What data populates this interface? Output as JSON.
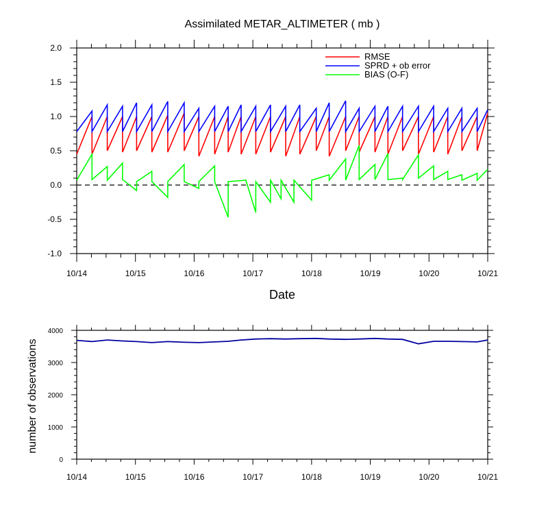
{
  "chart_data": [
    {
      "type": "line",
      "title": "Assimilated METAR_ALTIMETER ( mb )",
      "xlabel": "Date",
      "ylabel": "",
      "xlim": [
        "10/14",
        "10/21"
      ],
      "ylim": [
        -1.0,
        2.0
      ],
      "x_tick_labels": [
        "10/14",
        "10/15",
        "10/16",
        "10/17",
        "10/18",
        "10/19",
        "10/20",
        "10/21"
      ],
      "y_tick_labels": [
        "-1.0",
        "-0.5",
        "0.0",
        "0.5",
        "1.0",
        "1.5",
        "2.0"
      ],
      "y_ticks": [
        -1.0,
        -0.5,
        0.0,
        0.5,
        1.0,
        1.5,
        2.0
      ],
      "zero_line": "dashed",
      "grid": false,
      "legend_position": "top-right",
      "series": [
        {
          "name": "RMSE",
          "color": "#ff0000",
          "x_days": [
            0.0,
            0.26,
            0.26,
            0.52,
            0.52,
            0.78,
            0.78,
            1.02,
            1.02,
            1.28,
            1.28,
            1.55,
            1.55,
            1.83,
            1.83,
            2.08,
            2.08,
            2.35,
            2.35,
            2.58,
            2.58,
            2.8,
            2.8,
            3.05,
            3.05,
            3.3,
            3.3,
            3.56,
            3.56,
            3.8,
            3.8,
            4.08,
            4.08,
            4.3,
            4.3,
            4.58,
            4.58,
            4.81,
            4.81,
            5.08,
            5.08,
            5.3,
            5.3,
            5.55,
            5.55,
            5.82,
            5.82,
            6.08,
            6.08,
            6.32,
            6.32,
            6.56,
            6.56,
            6.82,
            6.82,
            7.0
          ],
          "values": [
            0.45,
            1.0,
            0.45,
            1.0,
            0.5,
            1.0,
            0.48,
            1.0,
            0.5,
            1.0,
            0.48,
            1.02,
            0.48,
            1.05,
            0.5,
            1.0,
            0.42,
            1.0,
            0.45,
            1.0,
            0.48,
            1.0,
            0.45,
            1.0,
            0.45,
            1.0,
            0.48,
            1.0,
            0.42,
            1.0,
            0.45,
            1.0,
            0.5,
            1.0,
            0.42,
            1.0,
            0.5,
            1.0,
            0.48,
            1.0,
            0.48,
            1.0,
            0.45,
            1.0,
            0.5,
            1.0,
            0.45,
            1.0,
            0.48,
            1.0,
            0.45,
            1.0,
            0.5,
            1.0,
            0.5,
            1.05
          ]
        },
        {
          "name": "SPRD + ob error",
          "color": "#0000ff",
          "x_days": [
            0.0,
            0.26,
            0.26,
            0.52,
            0.52,
            0.78,
            0.78,
            1.02,
            1.02,
            1.28,
            1.28,
            1.55,
            1.55,
            1.83,
            1.83,
            2.08,
            2.08,
            2.35,
            2.35,
            2.58,
            2.58,
            2.8,
            2.8,
            3.05,
            3.05,
            3.3,
            3.3,
            3.56,
            3.56,
            3.8,
            3.8,
            4.08,
            4.08,
            4.3,
            4.3,
            4.58,
            4.58,
            4.81,
            4.81,
            5.08,
            5.08,
            5.3,
            5.3,
            5.55,
            5.55,
            5.82,
            5.82,
            6.08,
            6.08,
            6.32,
            6.32,
            6.56,
            6.56,
            6.82,
            6.82,
            7.0
          ],
          "values": [
            0.78,
            1.08,
            0.78,
            1.17,
            0.78,
            1.15,
            0.78,
            1.2,
            0.78,
            1.17,
            0.78,
            1.22,
            0.78,
            1.2,
            0.78,
            1.12,
            0.78,
            1.15,
            0.78,
            1.15,
            0.78,
            1.17,
            0.78,
            1.15,
            0.78,
            1.17,
            0.78,
            1.15,
            0.78,
            1.17,
            0.78,
            1.12,
            0.78,
            1.2,
            0.78,
            1.23,
            0.78,
            1.12,
            0.78,
            1.15,
            0.78,
            1.15,
            0.78,
            1.15,
            0.78,
            1.15,
            0.78,
            1.15,
            0.78,
            1.12,
            0.78,
            1.12,
            0.78,
            1.12,
            0.78,
            1.1
          ]
        },
        {
          "name": "BIAS (O-F)",
          "color": "#00ff00",
          "x_days": [
            0.0,
            0.26,
            0.26,
            0.52,
            0.52,
            0.78,
            0.78,
            1.02,
            1.02,
            1.28,
            1.28,
            1.55,
            1.55,
            1.83,
            1.83,
            2.08,
            2.08,
            2.35,
            2.35,
            2.58,
            2.58,
            2.88,
            2.88,
            3.05,
            3.05,
            3.3,
            3.3,
            3.48,
            3.48,
            3.7,
            3.7,
            4.0,
            4.0,
            4.3,
            4.3,
            4.58,
            4.58,
            4.81,
            4.81,
            5.08,
            5.08,
            5.3,
            5.3,
            5.55,
            5.55,
            5.82,
            5.82,
            6.08,
            6.08,
            6.32,
            6.32,
            6.56,
            6.56,
            6.82,
            6.82,
            7.0
          ],
          "values": [
            0.07,
            0.45,
            0.08,
            0.27,
            0.07,
            0.32,
            0.08,
            -0.08,
            0.05,
            0.2,
            0.05,
            -0.18,
            0.05,
            0.3,
            0.05,
            -0.05,
            0.05,
            0.28,
            0.05,
            -0.47,
            0.05,
            0.07,
            0.07,
            -0.4,
            0.05,
            -0.25,
            0.07,
            -0.2,
            0.07,
            -0.25,
            0.07,
            -0.22,
            0.07,
            0.15,
            0.07,
            0.38,
            0.07,
            0.58,
            0.08,
            0.3,
            0.08,
            0.46,
            0.08,
            0.1,
            0.08,
            0.44,
            0.1,
            0.28,
            0.08,
            0.2,
            0.08,
            0.15,
            0.07,
            0.17,
            0.07,
            0.23
          ]
        }
      ]
    },
    {
      "type": "line",
      "title": "",
      "xlabel": "",
      "ylabel": "number of observations",
      "xlim": [
        "10/14",
        "10/21"
      ],
      "ylim": [
        0,
        4000
      ],
      "x_tick_labels": [
        "10/14",
        "10/15",
        "10/16",
        "10/17",
        "10/18",
        "10/19",
        "10/20",
        "10/21"
      ],
      "y_tick_labels": [
        "0",
        "1000",
        "2000",
        "3000",
        "4000"
      ],
      "y_ticks": [
        0,
        1000,
        2000,
        3000,
        4000
      ],
      "grid": false,
      "series": [
        {
          "color": "#0000a0",
          "x_days": [
            0.0,
            0.26,
            0.52,
            0.78,
            1.02,
            1.28,
            1.55,
            1.83,
            2.08,
            2.35,
            2.58,
            2.8,
            3.05,
            3.3,
            3.56,
            3.8,
            4.08,
            4.3,
            4.58,
            4.81,
            5.08,
            5.3,
            5.55,
            5.82,
            6.08,
            6.32,
            6.56,
            6.82,
            7.0
          ],
          "values": [
            3690,
            3650,
            3700,
            3670,
            3650,
            3620,
            3650,
            3630,
            3620,
            3640,
            3660,
            3700,
            3730,
            3740,
            3730,
            3740,
            3750,
            3730,
            3720,
            3730,
            3750,
            3730,
            3720,
            3580,
            3660,
            3660,
            3650,
            3640,
            3700
          ]
        }
      ]
    }
  ]
}
